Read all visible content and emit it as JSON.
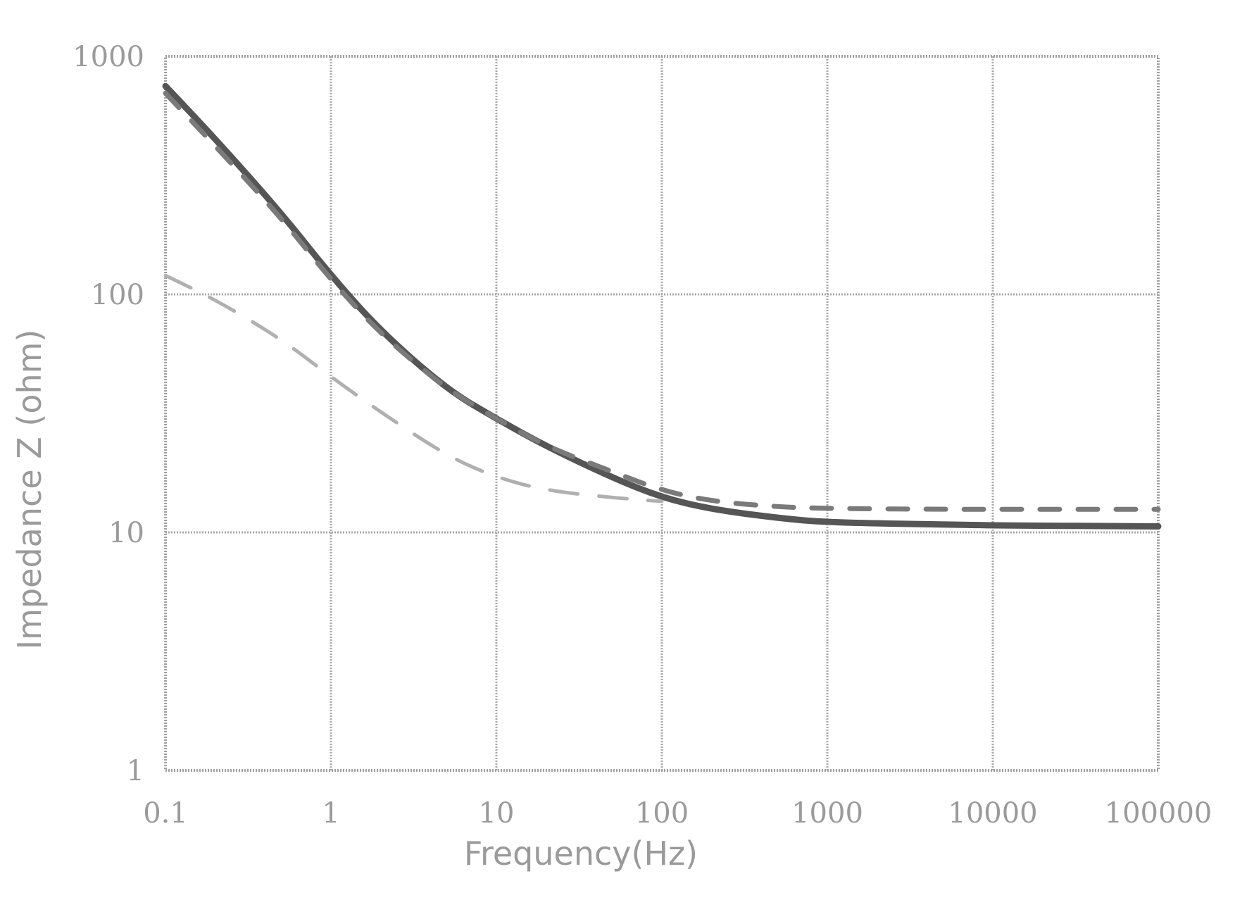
{
  "chart_data": {
    "type": "line",
    "title": "",
    "xlabel": "Frequency(Hz)",
    "ylabel": "Impedance Z (ohm)",
    "x_scale": "log",
    "y_scale": "log",
    "xlim": [
      0.1,
      100000
    ],
    "ylim": [
      1,
      1000
    ],
    "grid": true,
    "x_ticks": [
      "0.1",
      "1",
      "10",
      "100",
      "1000",
      "10000",
      "100000"
    ],
    "y_ticks": [
      "1000",
      "100",
      "10",
      "1"
    ],
    "series": [
      {
        "style": "solid",
        "color": "#555555",
        "x": [
          0.1,
          0.2,
          0.5,
          1,
          2,
          5,
          10,
          20,
          50,
          100,
          200,
          500,
          1000,
          5000,
          10000,
          100000
        ],
        "y": [
          750,
          450,
          220,
          120,
          70,
          40,
          30,
          23,
          17,
          14,
          12.5,
          11.5,
          11,
          10.8,
          10.7,
          10.6
        ]
      },
      {
        "style": "dashed",
        "color": "#7a7a7a",
        "x": [
          0.1,
          0.2,
          0.5,
          1,
          2,
          5,
          10,
          20,
          50,
          100,
          200,
          500,
          1000,
          5000,
          10000,
          100000
        ],
        "y": [
          700,
          420,
          210,
          115,
          68,
          40,
          30,
          23,
          18,
          15,
          13.5,
          12.8,
          12.6,
          12.5,
          12.5,
          12.5
        ]
      },
      {
        "style": "dashed",
        "color": "#b0b0b0",
        "x": [
          0.1,
          0.2,
          0.5,
          1,
          2,
          5,
          10,
          20,
          50,
          100
        ],
        "y": [
          120,
          95,
          65,
          45,
          32,
          21,
          17,
          15,
          14,
          13.5
        ]
      }
    ]
  }
}
